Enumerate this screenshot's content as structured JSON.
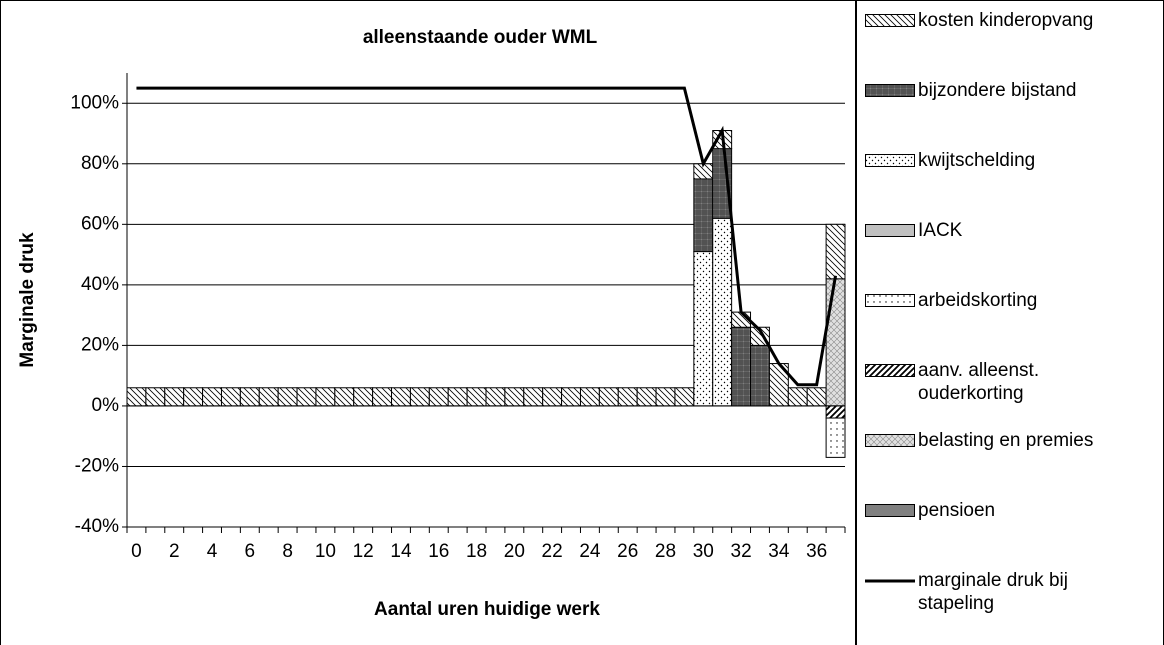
{
  "chart_data": {
    "type": "bar",
    "stacked": true,
    "title": "alleenstaande ouder WML",
    "y_label": "Marginale druk",
    "x_label": "Aantal uren huidige werk",
    "categories": [
      "0",
      null,
      "2",
      null,
      "4",
      null,
      "6",
      null,
      "8",
      null,
      "10",
      null,
      "12",
      null,
      "14",
      null,
      "16",
      null,
      "18",
      null,
      "20",
      null,
      "22",
      null,
      "24",
      null,
      "26",
      null,
      "28",
      null,
      "30",
      null,
      "32",
      null,
      "34",
      null,
      "36",
      null
    ],
    "ylim": [
      -40,
      110
    ],
    "yticks": [
      {
        "value": -40,
        "label": "-40%"
      },
      {
        "value": -20,
        "label": "-20%"
      },
      {
        "value": 0,
        "label": "0%"
      },
      {
        "value": 20,
        "label": "20%"
      },
      {
        "value": 40,
        "label": "40%"
      },
      {
        "value": 60,
        "label": "60%"
      },
      {
        "value": 80,
        "label": "80%"
      },
      {
        "value": 100,
        "label": "100%"
      }
    ],
    "grid": true,
    "legend": "right",
    "series": [
      {
        "name": "kwijtschelding",
        "color": "#ffffff",
        "pattern": "dots",
        "values": [
          null,
          null,
          null,
          null,
          null,
          null,
          null,
          null,
          null,
          null,
          null,
          null,
          null,
          null,
          null,
          null,
          null,
          null,
          null,
          null,
          null,
          null,
          null,
          null,
          null,
          null,
          null,
          null,
          null,
          null,
          51,
          62,
          null,
          null,
          null,
          null,
          null,
          null
        ]
      },
      {
        "name": "bijzondere bijstand",
        "color": "#808080",
        "pattern": "dense",
        "values": [
          null,
          null,
          null,
          null,
          null,
          null,
          null,
          null,
          null,
          null,
          null,
          null,
          null,
          null,
          null,
          null,
          null,
          null,
          null,
          null,
          null,
          null,
          null,
          null,
          null,
          null,
          null,
          null,
          null,
          null,
          24,
          23,
          26,
          20,
          null,
          null,
          null,
          null
        ]
      },
      {
        "name": "belasting en premies",
        "color": "#e0e0e0",
        "pattern": "cross",
        "values": [
          null,
          null,
          null,
          null,
          null,
          null,
          null,
          null,
          null,
          null,
          null,
          null,
          null,
          null,
          null,
          null,
          null,
          null,
          null,
          null,
          null,
          null,
          null,
          null,
          null,
          null,
          null,
          null,
          null,
          null,
          null,
          null,
          null,
          null,
          null,
          null,
          null,
          42
        ]
      },
      {
        "name": "kosten kinderopvang",
        "color": "#ffffff",
        "pattern": "hatch",
        "values": [
          6,
          6,
          6,
          6,
          6,
          6,
          6,
          6,
          6,
          6,
          6,
          6,
          6,
          6,
          6,
          6,
          6,
          6,
          6,
          6,
          6,
          6,
          6,
          6,
          6,
          6,
          6,
          6,
          6,
          6,
          5,
          6,
          5,
          6,
          14,
          6,
          6,
          18
        ]
      },
      {
        "name": "IACK",
        "color": "#c0c0c0",
        "pattern": "solid",
        "values": [
          null,
          null,
          null,
          null,
          null,
          null,
          null,
          null,
          null,
          null,
          null,
          null,
          null,
          null,
          null,
          null,
          null,
          null,
          null,
          null,
          null,
          null,
          null,
          null,
          null,
          null,
          null,
          null,
          null,
          null,
          null,
          null,
          null,
          null,
          null,
          null,
          null,
          null
        ]
      },
      {
        "name": "aanv. alleenst. ouderkorting",
        "color": "#ffffff",
        "pattern": "bold-hatch",
        "values": [
          null,
          null,
          null,
          null,
          null,
          null,
          null,
          null,
          null,
          null,
          null,
          null,
          null,
          null,
          null,
          null,
          null,
          null,
          null,
          null,
          null,
          null,
          null,
          null,
          null,
          null,
          null,
          null,
          null,
          null,
          null,
          null,
          null,
          null,
          null,
          null,
          null,
          -4
        ]
      },
      {
        "name": "arbeidskorting",
        "color": "#ffffff",
        "pattern": "sparse-dots",
        "values": [
          null,
          null,
          null,
          null,
          null,
          null,
          null,
          null,
          null,
          null,
          null,
          null,
          null,
          null,
          null,
          null,
          null,
          null,
          null,
          null,
          null,
          null,
          null,
          null,
          null,
          null,
          null,
          null,
          null,
          null,
          null,
          null,
          null,
          null,
          null,
          null,
          null,
          -13
        ]
      },
      {
        "name": "pensioen",
        "color": "#808080",
        "pattern": "solid",
        "values": [
          null,
          null,
          null,
          null,
          null,
          null,
          null,
          null,
          null,
          null,
          null,
          null,
          null,
          null,
          null,
          null,
          null,
          null,
          null,
          null,
          null,
          null,
          null,
          null,
          null,
          null,
          null,
          null,
          null,
          null,
          null,
          null,
          null,
          null,
          null,
          null,
          null,
          null
        ]
      },
      {
        "name": "marginale druk bij stapeling",
        "color": "#000000",
        "type": "line",
        "values": [
          105,
          105,
          105,
          105,
          105,
          105,
          105,
          105,
          105,
          105,
          105,
          105,
          105,
          105,
          105,
          105,
          105,
          105,
          105,
          105,
          105,
          105,
          105,
          105,
          105,
          105,
          105,
          105,
          105,
          105,
          80,
          91,
          31,
          25,
          14,
          7,
          7,
          43
        ]
      }
    ],
    "legend_order": [
      3,
      1,
      0,
      4,
      6,
      5,
      2,
      7,
      8
    ]
  }
}
